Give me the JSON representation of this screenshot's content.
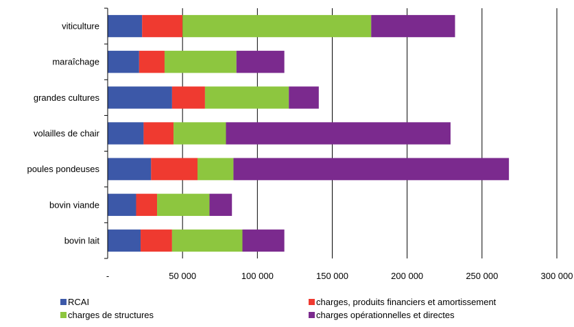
{
  "chart_data": {
    "type": "bar",
    "orientation": "horizontal",
    "stacked": true,
    "categories": [
      "viticulture",
      "maraîchage",
      "grandes cultures",
      "volailles de chair",
      "poules pondeuses",
      "bovin viande",
      "bovin lait"
    ],
    "series": [
      {
        "name": "RCAI",
        "color": "#3c58a8",
        "values": [
          23000,
          21000,
          43000,
          24000,
          29000,
          19000,
          22000
        ]
      },
      {
        "name": "charges, produits financiers et amortissement",
        "color": "#ef3a30",
        "values": [
          27000,
          17000,
          22000,
          20000,
          31000,
          14000,
          21000
        ]
      },
      {
        "name": "charges de structures",
        "color": "#8dc63f",
        "values": [
          126000,
          48000,
          56000,
          35000,
          24000,
          35000,
          47000
        ]
      },
      {
        "name": "charges opérationnelles et directes",
        "color": "#7b2a8e",
        "values": [
          56000,
          32000,
          20000,
          150000,
          184000,
          15000,
          28000
        ]
      }
    ],
    "xlim": [
      0,
      300000
    ],
    "x_ticks": [
      0,
      50000,
      100000,
      150000,
      200000,
      250000,
      300000
    ],
    "x_tick_labels": [
      "-",
      "50 000",
      "100 000",
      "150 000",
      "200 000",
      "250 000",
      "300 000"
    ],
    "grid": true,
    "legend_position": "bottom",
    "title": "",
    "xlabel": "",
    "ylabel": ""
  }
}
